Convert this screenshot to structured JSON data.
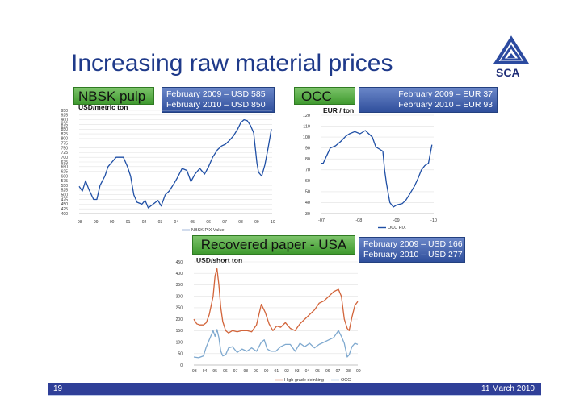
{
  "title": "Increasing raw material prices",
  "logo": {
    "text": "SCA",
    "icon": "sca-triangle-logo"
  },
  "footer": {
    "page": "19",
    "date": "11 March 2010"
  },
  "colors": {
    "title": "#1f3a8a",
    "footer": "#2f3f98",
    "green": "#4aa83a",
    "blue": "#34539f"
  },
  "chart_data": [
    {
      "type": "line",
      "label": "NBSK pulp",
      "note_2009": "February 2009 – USD 585",
      "note_2010": "February 2010 – USD 850",
      "unit": "USD/metric ton",
      "x_ticks": [
        "-98",
        "-99",
        "-00",
        "-01",
        "-02",
        "-03",
        "-04",
        "-05",
        "-06",
        "-07",
        "-08",
        "-09",
        "-10"
      ],
      "y_ticks": [
        400,
        425,
        450,
        475,
        500,
        525,
        550,
        575,
        600,
        625,
        650,
        675,
        700,
        725,
        750,
        775,
        800,
        825,
        850,
        875,
        900,
        925,
        950
      ],
      "ylim": [
        400,
        950
      ],
      "xlim": [
        1998.0,
        2010.0
      ],
      "series": [
        {
          "name": "NBSK PIX Value",
          "color": "#1f4fa5",
          "x": [
            1998.0,
            1998.2,
            1998.4,
            1998.6,
            1998.9,
            1999.1,
            1999.3,
            1999.6,
            1999.8,
            2000.1,
            2000.3,
            2000.5,
            2000.75,
            2001.0,
            2001.2,
            2001.4,
            2001.6,
            2001.9,
            2002.1,
            2002.3,
            2002.6,
            2002.9,
            2003.1,
            2003.35,
            2003.6,
            2003.9,
            2004.1,
            2004.4,
            2004.7,
            2004.95,
            2005.2,
            2005.5,
            2005.8,
            2006.05,
            2006.3,
            2006.6,
            2006.85,
            2007.1,
            2007.35,
            2007.6,
            2007.85,
            2008.05,
            2008.25,
            2008.45,
            2008.65,
            2008.85,
            2009.05,
            2009.15,
            2009.35,
            2009.55,
            2009.75,
            2009.95
          ],
          "y": [
            545,
            520,
            575,
            530,
            475,
            475,
            550,
            600,
            650,
            680,
            700,
            700,
            700,
            650,
            600,
            500,
            460,
            450,
            470,
            430,
            450,
            470,
            440,
            500,
            520,
            560,
            590,
            640,
            630,
            570,
            610,
            640,
            610,
            650,
            700,
            740,
            760,
            770,
            790,
            815,
            850,
            885,
            900,
            895,
            870,
            830,
            670,
            620,
            600,
            660,
            750,
            850
          ]
        }
      ],
      "legend": "bottom"
    },
    {
      "type": "line",
      "label": "OCC",
      "note_2009": "February 2009 – EUR 37",
      "note_2010": "February 2010 – EUR 93",
      "unit": "EUR / ton",
      "x_ticks": [
        "-07",
        "-08",
        "-09",
        "-10"
      ],
      "y_ticks": [
        30,
        40,
        50,
        60,
        70,
        80,
        90,
        100,
        110,
        120
      ],
      "ylim": [
        30,
        120
      ],
      "xlim": [
        2007.0,
        2010.2
      ],
      "series": [
        {
          "name": "OCC PIX",
          "color": "#1f4fa5",
          "x": [
            2007.0,
            2007.05,
            2007.15,
            2007.25,
            2007.4,
            2007.55,
            2007.7,
            2007.8,
            2007.95,
            2008.1,
            2008.25,
            2008.35,
            2008.45,
            2008.55,
            2008.65,
            2008.75,
            2008.8,
            2008.85,
            2008.95,
            2009.05,
            2009.15,
            2009.3,
            2009.4,
            2009.5,
            2009.65,
            2009.75,
            2009.85,
            2009.95,
            2010.05,
            2010.15
          ],
          "y": [
            76,
            76,
            83,
            90,
            92,
            96,
            101,
            103,
            105,
            103,
            106,
            103,
            100,
            91,
            89,
            87,
            70,
            58,
            40,
            36,
            38,
            39,
            42,
            47,
            55,
            62,
            70,
            74,
            76,
            93
          ]
        }
      ],
      "legend": "bottom"
    },
    {
      "type": "line",
      "label": "Recovered paper - USA",
      "note_2009": "February 2009 – USD 166",
      "note_2010": "February 2010 – USD 277",
      "unit": "USD/short ton",
      "x_ticks": [
        "-93",
        "-94",
        "-95",
        "-96",
        "-97",
        "-98",
        "-99",
        "-00",
        "-01",
        "-02",
        "-03",
        "-04",
        "-05",
        "-06",
        "-07",
        "-08",
        "-09"
      ],
      "y_ticks": [
        0,
        50,
        100,
        150,
        200,
        250,
        300,
        350,
        400,
        450
      ],
      "ylim": [
        0,
        450
      ],
      "xlim": [
        1993.0,
        2010.0
      ],
      "series": [
        {
          "name": "High grade deinking",
          "color": "#d2643a",
          "x": [
            1993.0,
            1993.3,
            1993.6,
            1994.0,
            1994.3,
            1994.6,
            1995.0,
            1995.2,
            1995.4,
            1995.6,
            1995.8,
            1996.0,
            1996.3,
            1996.6,
            1997.0,
            1997.5,
            1998.0,
            1998.5,
            1999.0,
            1999.5,
            2000.0,
            2000.4,
            2000.8,
            2001.2,
            2001.6,
            2002.0,
            2002.5,
            2003.0,
            2003.5,
            2004.0,
            2004.5,
            2005.0,
            2005.5,
            2006.0,
            2006.5,
            2007.0,
            2007.5,
            2008.0,
            2008.3,
            2008.6,
            2008.9,
            2009.1,
            2009.4,
            2009.7,
            2010.0
          ],
          "y": [
            200,
            180,
            175,
            175,
            185,
            220,
            300,
            390,
            420,
            350,
            250,
            190,
            150,
            140,
            150,
            145,
            150,
            150,
            145,
            175,
            265,
            230,
            180,
            150,
            170,
            165,
            185,
            160,
            150,
            180,
            200,
            220,
            240,
            270,
            280,
            300,
            320,
            330,
            300,
            200,
            160,
            150,
            210,
            260,
            277
          ]
        },
        {
          "name": "OCC",
          "color": "#7fa9cf",
          "x": [
            1993.0,
            1993.5,
            1994.0,
            1994.3,
            1994.6,
            1995.0,
            1995.2,
            1995.4,
            1995.6,
            1995.8,
            1996.0,
            1996.3,
            1996.6,
            1997.0,
            1997.5,
            1998.0,
            1998.5,
            1999.0,
            1999.5,
            2000.0,
            2000.3,
            2000.6,
            2001.0,
            2001.5,
            2002.0,
            2002.5,
            2003.0,
            2003.5,
            2004.0,
            2004.5,
            2005.0,
            2005.5,
            2006.0,
            2006.5,
            2007.0,
            2007.5,
            2008.0,
            2008.3,
            2008.6,
            2008.9,
            2009.1,
            2009.4,
            2009.7,
            2010.0
          ],
          "y": [
            35,
            32,
            40,
            80,
            110,
            150,
            125,
            155,
            120,
            60,
            40,
            45,
            75,
            80,
            55,
            70,
            60,
            75,
            60,
            100,
            110,
            70,
            60,
            60,
            80,
            90,
            90,
            60,
            95,
            80,
            95,
            75,
            90,
            100,
            110,
            120,
            150,
            125,
            95,
            35,
            45,
            80,
            95,
            90
          ]
        }
      ],
      "legend": "bottom"
    }
  ]
}
